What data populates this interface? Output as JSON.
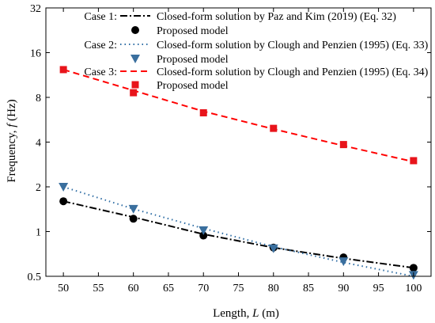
{
  "chart_data": {
    "type": "line",
    "xlabel_main": "Length, ",
    "xlabel_var": "L",
    "xlabel_unit": " (m)",
    "ylabel_main": "Frequency, ",
    "ylabel_var": "f",
    "ylabel_unit": " (Hz)",
    "y_scale": "log2",
    "xlim": [
      47.5,
      102.5
    ],
    "ylim": [
      0.5,
      32
    ],
    "x_ticks": [
      50,
      55,
      60,
      65,
      70,
      75,
      80,
      85,
      90,
      95,
      100
    ],
    "y_ticks": [
      0.5,
      1,
      2,
      4,
      8,
      16,
      32
    ],
    "legend_position": "top-right",
    "series": [
      {
        "case_label": "Case 1:",
        "name": "Closed-form solution by Paz and Kim (2019) (Eq. 32)",
        "style": "dash-dot",
        "color": "#000000",
        "x": [
          50,
          60,
          70,
          80,
          90,
          100
        ],
        "y": [
          1.6,
          1.25,
          0.96,
          0.78,
          0.66,
          0.57
        ]
      },
      {
        "case_label": "",
        "name": "Proposed model",
        "style": "circle",
        "color": "#000000",
        "x": [
          50,
          60,
          70,
          80,
          90,
          100
        ],
        "y": [
          1.6,
          1.22,
          0.94,
          0.78,
          0.67,
          0.57
        ]
      },
      {
        "case_label": "Case 2:",
        "name": "Closed-form solution by Clough and Penzien (1995) (Eq. 33)",
        "style": "dotted",
        "color": "#2e6da4",
        "x": [
          50,
          60,
          70,
          80,
          90,
          100
        ],
        "y": [
          2.0,
          1.42,
          1.05,
          0.79,
          0.62,
          0.5
        ]
      },
      {
        "case_label": "",
        "name": "Proposed model",
        "style": "triangle-down",
        "color": "#3a6f9e",
        "x": [
          50,
          60,
          70,
          80,
          90,
          100
        ],
        "y": [
          2.0,
          1.42,
          1.02,
          0.77,
          0.63,
          0.51
        ]
      },
      {
        "case_label": "Case 3:",
        "name": "Closed-form solution by Clough and Penzien (1995) (Eq. 34)",
        "style": "dashed",
        "color": "#ff0000",
        "x": [
          50,
          60,
          70,
          80,
          90,
          100
        ],
        "y": [
          12.3,
          8.9,
          6.45,
          4.9,
          3.78,
          2.95
        ]
      },
      {
        "case_label": "",
        "name": "Proposed model",
        "style": "square",
        "color": "#e8141b",
        "x": [
          50,
          60,
          70,
          80,
          90,
          100
        ],
        "y": [
          12.3,
          8.6,
          6.3,
          4.95,
          3.85,
          3.0
        ]
      }
    ]
  }
}
